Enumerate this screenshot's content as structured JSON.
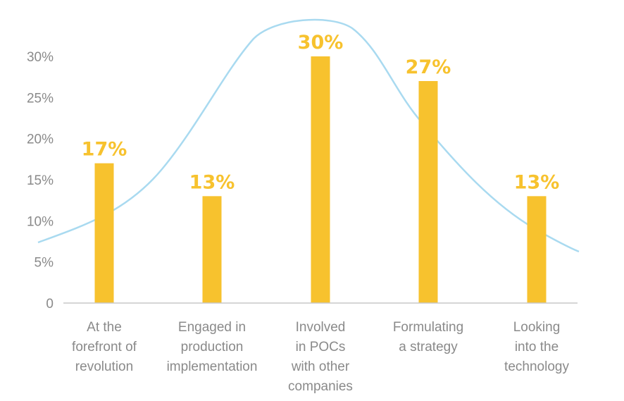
{
  "chart_data": {
    "type": "bar",
    "categories": [
      [
        "At the",
        "forefront of",
        "revolution"
      ],
      [
        "Engaged in",
        "production",
        "implementation"
      ],
      [
        "Involved",
        "in POCs",
        "with other",
        "companies"
      ],
      [
        "Formulating",
        "a strategy"
      ],
      [
        "Looking",
        "into the",
        "technology"
      ]
    ],
    "values": [
      17,
      13,
      30,
      27,
      13
    ],
    "data_labels": [
      "17%",
      "13%",
      "30%",
      "27%",
      "13%"
    ],
    "yticks": [
      "0",
      "5%",
      "10%",
      "15%",
      "20%",
      "25%",
      "30%"
    ],
    "ylim": [
      0,
      30
    ],
    "grid": false,
    "bar_color": "#f7c22e",
    "curve_color": "#a9daf0",
    "axis_color": "#c8c8c8",
    "curve": "bell-shaped trend line over the bars"
  }
}
